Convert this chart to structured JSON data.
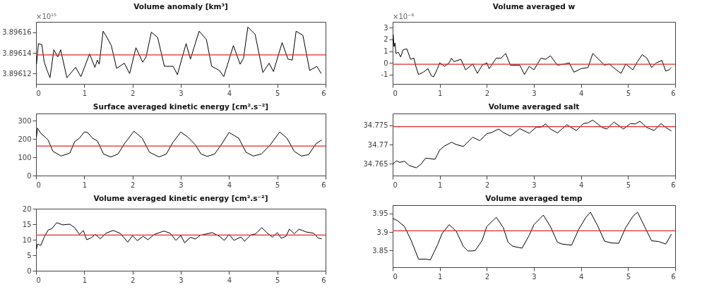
{
  "chart_data": [
    {
      "type": "line",
      "title": "Volume anomaly [km³]",
      "annotations": [
        "×10¹⁵"
      ],
      "xlim": [
        0,
        6
      ],
      "xticks": [
        0,
        1,
        2,
        3,
        4,
        5,
        6
      ],
      "ylim": [
        3.89611,
        3.89617
      ],
      "yticks": [
        3.89612,
        3.89614,
        3.89616
      ],
      "grid": false,
      "x": [
        0.01,
        0.05,
        0.12,
        0.17,
        0.23,
        0.29,
        0.37,
        0.45,
        0.51,
        0.64,
        0.82,
        0.93,
        1.11,
        1.22,
        1.27,
        1.31,
        1.39,
        1.47,
        1.56,
        1.67,
        1.83,
        1.94,
        2.07,
        2.21,
        2.28,
        2.39,
        2.52,
        2.66,
        2.84,
        2.93,
        3.11,
        3.2,
        3.38,
        3.53,
        3.64,
        3.8,
        3.89,
        4.09,
        4.23,
        4.3,
        4.39,
        4.54,
        4.7,
        4.83,
        4.92,
        5.1,
        5.22,
        5.31,
        5.39,
        5.53,
        5.67,
        5.82,
        5.91
      ],
      "series": [
        {
          "color": "#000000",
          "values": [
            3.896129,
            3.896149,
            3.896148,
            3.896131,
            3.896123,
            3.896116,
            3.896143,
            3.896136,
            3.896143,
            3.896116,
            3.896126,
            3.896117,
            3.896139,
            3.896126,
            3.896133,
            3.896129,
            3.896161,
            3.896155,
            3.896147,
            3.896125,
            3.89613,
            3.89612,
            3.896145,
            3.896131,
            3.896136,
            3.89616,
            3.896155,
            3.896127,
            3.896127,
            3.896119,
            3.896149,
            3.896134,
            3.896161,
            3.896153,
            3.896127,
            3.896123,
            3.896117,
            3.896147,
            3.896129,
            3.896135,
            3.896165,
            3.896158,
            3.896121,
            3.89613,
            3.896122,
            3.89615,
            3.896134,
            3.896133,
            3.896161,
            3.896157,
            3.896123,
            3.896127,
            3.89612
          ]
        }
      ],
      "ref_lines": [
        {
          "axis": "y",
          "value": 3.896138,
          "color": "#e0282d"
        }
      ]
    },
    {
      "type": "line",
      "title": "Surface averaged kinetic energy [cm².s⁻²]",
      "xlim": [
        0,
        6
      ],
      "xticks": [
        0,
        1,
        2,
        3,
        4,
        5,
        6
      ],
      "ylim": [
        0,
        340
      ],
      "yticks": [
        0,
        100,
        200,
        300
      ],
      "grid": false,
      "x": [
        0.01,
        0.03,
        0.1,
        0.2,
        0.25,
        0.35,
        0.52,
        0.7,
        0.8,
        0.9,
        1.0,
        1.07,
        1.17,
        1.27,
        1.4,
        1.55,
        1.7,
        1.83,
        2.03,
        2.2,
        2.35,
        2.55,
        2.7,
        2.83,
        3.0,
        3.15,
        3.3,
        3.42,
        3.55,
        3.7,
        3.85,
        4.0,
        4.2,
        4.35,
        4.5,
        4.67,
        4.85,
        5.05,
        5.2,
        5.35,
        5.5,
        5.65,
        5.8,
        5.92
      ],
      "series": [
        {
          "color": "#000000",
          "values": [
            210,
            260,
            231,
            208,
            195,
            133,
            107,
            123,
            185,
            205,
            239,
            236,
            205,
            190,
            118,
            102,
            118,
            174,
            243,
            205,
            128,
            102,
            118,
            179,
            239,
            210,
            169,
            118,
            105,
            118,
            174,
            236,
            205,
            128,
            107,
            118,
            167,
            239,
            205,
            133,
            107,
            115,
            174,
            195
          ]
        }
      ],
      "ref_lines": [
        {
          "axis": "y",
          "value": 162,
          "color": "#e0282d"
        }
      ]
    },
    {
      "type": "line",
      "title": "Volume averaged kinetic energy [cm².s⁻²]",
      "xlim": [
        0,
        6
      ],
      "xticks": [
        0,
        1,
        2,
        3,
        4,
        5,
        6
      ],
      "ylim": [
        0,
        20
      ],
      "yticks": [
        0,
        5,
        10,
        15,
        20
      ],
      "grid": false,
      "x": [
        0.01,
        0.03,
        0.1,
        0.17,
        0.25,
        0.33,
        0.43,
        0.55,
        0.7,
        0.8,
        0.9,
        0.98,
        1.05,
        1.13,
        1.23,
        1.33,
        1.45,
        1.6,
        1.75,
        1.9,
        2.0,
        2.1,
        2.22,
        2.32,
        2.45,
        2.65,
        2.78,
        2.9,
        3.0,
        3.08,
        3.2,
        3.3,
        3.4,
        3.65,
        3.8,
        3.9,
        4.0,
        4.1,
        4.25,
        4.32,
        4.45,
        4.55,
        4.68,
        4.78,
        4.9,
        5.0,
        5.08,
        5.18,
        5.25,
        5.35,
        5.45,
        5.6,
        5.75,
        5.85,
        5.92
      ],
      "series": [
        {
          "color": "#000000",
          "values": [
            7.0,
            8.6,
            8.2,
            10.8,
            13.1,
            13.6,
            15.5,
            14.8,
            15.0,
            13.9,
            11.7,
            13.0,
            10.0,
            10.5,
            11.7,
            10.3,
            12.1,
            13.0,
            12.0,
            9.2,
            11.3,
            9.7,
            11.1,
            10.0,
            11.7,
            12.8,
            12.1,
            9.8,
            11.4,
            9.0,
            10.8,
            10.2,
            11.4,
            12.3,
            11.1,
            9.8,
            11.7,
            9.8,
            10.9,
            9.5,
            11.5,
            11.9,
            13.9,
            12.3,
            10.8,
            12.3,
            10.5,
            11.1,
            13.4,
            11.9,
            13.4,
            12.5,
            12.1,
            10.5,
            10.3
          ]
        }
      ],
      "ref_lines": [
        {
          "axis": "y",
          "value": 11.5,
          "color": "#e0282d"
        }
      ]
    },
    {
      "type": "line",
      "title": "Volume averaged w",
      "annotations": [
        "×10⁻⁶"
      ],
      "xlim": [
        0,
        6
      ],
      "xticks": [
        0,
        1,
        2,
        3,
        4,
        5,
        6
      ],
      "ylim": [
        -1.8,
        3.5
      ],
      "yticks": [
        -1,
        0,
        1,
        2,
        3
      ],
      "grid": false,
      "x": [
        0.0,
        0.01,
        0.03,
        0.05,
        0.07,
        0.12,
        0.17,
        0.22,
        0.3,
        0.38,
        0.45,
        0.5,
        0.55,
        0.65,
        0.75,
        0.82,
        0.87,
        0.95,
        1.0,
        1.1,
        1.2,
        1.25,
        1.3,
        1.45,
        1.55,
        1.7,
        1.8,
        1.9,
        2.0,
        2.05,
        2.2,
        2.3,
        2.4,
        2.5,
        2.7,
        2.8,
        2.9,
        3.0,
        3.15,
        3.25,
        3.35,
        3.5,
        3.65,
        3.75,
        3.85,
        4.0,
        4.15,
        4.25,
        4.35,
        4.5,
        4.6,
        4.75,
        4.85,
        4.95,
        5.1,
        5.2,
        5.3,
        5.4,
        5.5,
        5.6,
        5.72,
        5.8,
        5.87,
        5.92
      ],
      "series": [
        {
          "color": "#000000",
          "values": [
            1.4,
            2.4,
            1.4,
            1.7,
            0.8,
            0.9,
            0.5,
            1.1,
            1.2,
            0.3,
            0.4,
            -0.4,
            -1.0,
            -0.8,
            -0.5,
            -1.1,
            -1.2,
            -0.5,
            0.0,
            -0.3,
            0.0,
            0.4,
            0.1,
            0.3,
            -0.6,
            -0.1,
            -0.9,
            -0.2,
            0.0,
            -0.5,
            0.4,
            0.4,
            0.8,
            -0.2,
            -0.2,
            -1.0,
            -0.3,
            -0.6,
            0.4,
            0.3,
            0.6,
            -0.2,
            -0.1,
            0.0,
            -0.8,
            -0.5,
            -0.4,
            0.8,
            0.4,
            -0.2,
            -0.1,
            -0.6,
            -0.9,
            -0.1,
            -0.6,
            0.1,
            0.7,
            0.4,
            -0.4,
            0.0,
            0.2,
            -0.7,
            -0.6,
            -0.4
          ]
        }
      ],
      "ref_lines": [
        {
          "axis": "y",
          "value": -0.12,
          "color": "#e0282d"
        }
      ]
    },
    {
      "type": "line",
      "title": "Volume averaged salt",
      "xlim": [
        0,
        6
      ],
      "xticks": [
        0,
        1,
        2,
        3,
        4,
        5,
        6
      ],
      "ylim": [
        34.762,
        34.778
      ],
      "yticks": [
        34.765,
        34.77,
        34.775
      ],
      "grid": false,
      "x": [
        0.0,
        0.08,
        0.15,
        0.25,
        0.35,
        0.5,
        0.6,
        0.7,
        0.9,
        1.0,
        1.1,
        1.25,
        1.35,
        1.5,
        1.7,
        1.85,
        2.0,
        2.1,
        2.25,
        2.35,
        2.5,
        2.7,
        2.9,
        3.05,
        3.15,
        3.25,
        3.35,
        3.5,
        3.7,
        3.9,
        4.05,
        4.15,
        4.25,
        4.45,
        4.55,
        4.7,
        4.9,
        5.05,
        5.15,
        5.25,
        5.4,
        5.55,
        5.7,
        5.8,
        5.92
      ],
      "series": [
        {
          "color": "#000000",
          "values": [
            34.7649,
            34.7658,
            34.7654,
            34.7657,
            34.7646,
            34.764,
            34.7649,
            34.7665,
            34.7662,
            34.7686,
            34.7696,
            34.7706,
            34.77,
            34.7695,
            34.7719,
            34.771,
            34.7728,
            34.7731,
            34.774,
            34.7731,
            34.7722,
            34.7741,
            34.7729,
            34.7745,
            34.7745,
            34.7753,
            34.774,
            34.773,
            34.7751,
            34.7736,
            34.7754,
            34.7756,
            34.7763,
            34.7744,
            34.774,
            34.7758,
            34.774,
            34.7754,
            34.7753,
            34.776,
            34.7744,
            34.7736,
            34.7754,
            34.7744,
            34.7735
          ]
        }
      ],
      "ref_lines": [
        {
          "axis": "y",
          "value": 34.7746,
          "color": "#e0282d"
        }
      ]
    },
    {
      "type": "line",
      "title": "Volume averaged temp",
      "xlim": [
        0,
        6
      ],
      "xticks": [
        0,
        1,
        2,
        3,
        4,
        5,
        6
      ],
      "ylim": [
        3.804,
        3.973
      ],
      "yticks": [
        3.85,
        3.9,
        3.95
      ],
      "grid": false,
      "x": [
        0.0,
        0.1,
        0.25,
        0.4,
        0.55,
        0.7,
        0.8,
        0.95,
        1.05,
        1.2,
        1.35,
        1.5,
        1.6,
        1.75,
        1.9,
        2.0,
        2.2,
        2.35,
        2.45,
        2.55,
        2.75,
        2.9,
        3.0,
        3.2,
        3.35,
        3.5,
        3.6,
        3.8,
        3.95,
        4.1,
        4.2,
        4.35,
        4.5,
        4.65,
        4.8,
        4.95,
        5.1,
        5.2,
        5.35,
        5.5,
        5.65,
        5.8,
        5.92
      ],
      "series": [
        {
          "color": "#000000",
          "values": [
            3.937,
            3.931,
            3.915,
            3.875,
            3.826,
            3.826,
            3.824,
            3.864,
            3.896,
            3.92,
            3.902,
            3.861,
            3.848,
            3.849,
            3.877,
            3.915,
            3.94,
            3.912,
            3.872,
            3.861,
            3.856,
            3.891,
            3.92,
            3.946,
            3.915,
            3.872,
            3.867,
            3.864,
            3.907,
            3.939,
            3.954,
            3.918,
            3.875,
            3.87,
            3.869,
            3.912,
            3.942,
            3.954,
            3.915,
            3.876,
            3.874,
            3.867,
            3.894
          ]
        }
      ],
      "ref_lines": [
        {
          "axis": "y",
          "value": 3.9032,
          "color": "#e0282d"
        }
      ]
    }
  ]
}
